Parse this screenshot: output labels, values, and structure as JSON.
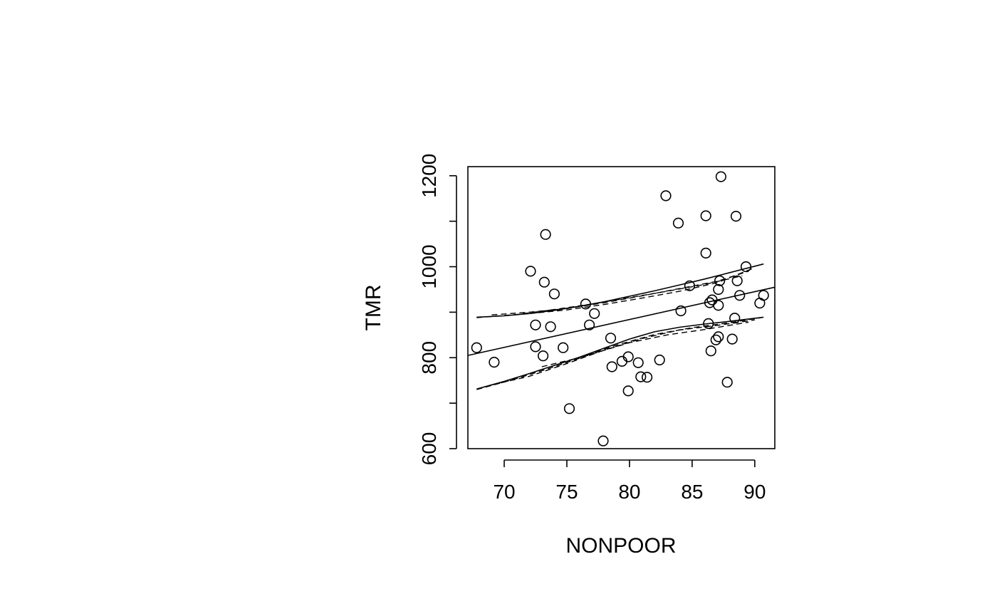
{
  "chart_data": {
    "type": "scatter",
    "title": "",
    "xlabel": "NONPOOR",
    "ylabel": "TMR",
    "xlim": [
      67.1,
      91.6
    ],
    "ylim": [
      600,
      1220
    ],
    "xticks": [
      70,
      75,
      80,
      85,
      90
    ],
    "yticks": [
      600,
      800,
      1000,
      1200
    ],
    "yticks_minor": [
      700,
      900,
      1100
    ],
    "grid": false,
    "points": [
      [
        67.8,
        822
      ],
      [
        69.2,
        790
      ],
      [
        72.1,
        990
      ],
      [
        72.5,
        872
      ],
      [
        72.5,
        824
      ],
      [
        73.1,
        804
      ],
      [
        73.2,
        966
      ],
      [
        73.3,
        1071
      ],
      [
        73.7,
        868
      ],
      [
        74.0,
        940
      ],
      [
        74.7,
        822
      ],
      [
        75.2,
        688
      ],
      [
        76.5,
        918
      ],
      [
        76.8,
        872
      ],
      [
        77.2,
        897
      ],
      [
        77.9,
        617
      ],
      [
        78.5,
        843
      ],
      [
        78.6,
        780
      ],
      [
        79.4,
        792
      ],
      [
        79.9,
        727
      ],
      [
        79.9,
        802
      ],
      [
        80.7,
        789
      ],
      [
        80.9,
        758
      ],
      [
        81.4,
        757
      ],
      [
        82.4,
        795
      ],
      [
        82.9,
        1156
      ],
      [
        83.9,
        1096
      ],
      [
        84.1,
        903
      ],
      [
        84.8,
        958
      ],
      [
        86.1,
        1112
      ],
      [
        86.1,
        1030
      ],
      [
        86.3,
        875
      ],
      [
        86.4,
        921
      ],
      [
        86.5,
        815
      ],
      [
        86.6,
        927
      ],
      [
        86.9,
        839
      ],
      [
        87.1,
        846
      ],
      [
        87.1,
        915
      ],
      [
        87.1,
        950
      ],
      [
        87.2,
        969
      ],
      [
        87.3,
        1198
      ],
      [
        87.8,
        746
      ],
      [
        88.2,
        841
      ],
      [
        88.4,
        887
      ],
      [
        88.5,
        1111
      ],
      [
        88.6,
        969
      ],
      [
        88.8,
        937
      ],
      [
        89.3,
        1000
      ],
      [
        90.4,
        920
      ],
      [
        90.7,
        937
      ]
    ],
    "fit_line": {
      "x": [
        67.1,
        91.6
      ],
      "y": [
        805,
        955
      ]
    },
    "upper_band": {
      "x": [
        67.8,
        70,
        72,
        74,
        76,
        78,
        80,
        82,
        84,
        86,
        88,
        90.7
      ],
      "y": [
        889,
        892,
        897,
        904,
        913,
        923,
        935,
        947,
        960,
        973,
        987,
        1006
      ]
    },
    "lower_band": {
      "x": [
        67.8,
        70,
        72,
        74,
        76,
        78,
        80,
        82,
        84,
        86,
        88,
        90.7
      ],
      "y": [
        731,
        748,
        765,
        783,
        801,
        821,
        841,
        857,
        867,
        874,
        880,
        889
      ]
    },
    "dashed_band_envelopes": {
      "upper": [
        {
          "x": [
            67.8,
            71,
            74,
            77,
            80,
            83,
            86,
            89
          ],
          "y": [
            888,
            895,
            906,
            918,
            932,
            946,
            961,
            980
          ]
        },
        {
          "x": [
            69,
            72,
            75,
            78,
            81,
            84,
            87,
            89.5
          ],
          "y": [
            894,
            900,
            908,
            921,
            936,
            952,
            968,
            990
          ]
        },
        {
          "x": [
            72,
            75,
            78,
            81,
            84,
            87,
            90
          ],
          "y": [
            897,
            905,
            917,
            931,
            946,
            965,
            998
          ]
        }
      ],
      "lower": [
        {
          "x": [
            67.8,
            71,
            74,
            77,
            80,
            83,
            86,
            89.5
          ],
          "y": [
            730,
            754,
            780,
            808,
            833,
            850,
            862,
            878
          ]
        },
        {
          "x": [
            69,
            72,
            75,
            78,
            81,
            84,
            87,
            90
          ],
          "y": [
            740,
            759,
            787,
            817,
            842,
            861,
            871,
            883
          ]
        },
        {
          "x": [
            73,
            76,
            79,
            82,
            85,
            88,
            90.5
          ],
          "y": [
            780,
            800,
            828,
            851,
            866,
            877,
            888
          ]
        }
      ]
    }
  }
}
